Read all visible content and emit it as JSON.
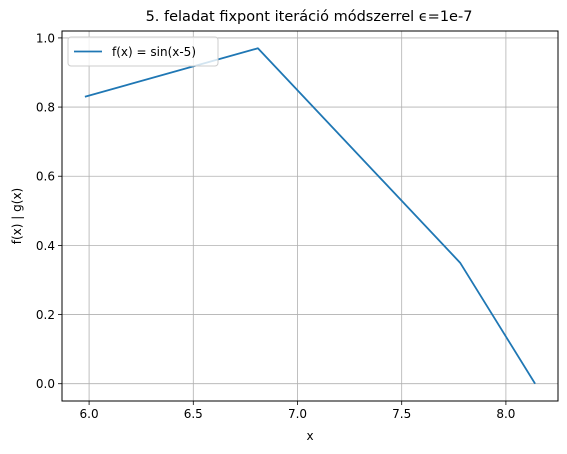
{
  "chart_data": {
    "type": "line",
    "title": "5. feladat fixpont iteráció módszerrel ϵ=1e-7",
    "xlabel": "x",
    "ylabel": "f(x) | g(x)",
    "xlim": [
      5.87,
      8.25
    ],
    "ylim": [
      -0.05,
      1.02
    ],
    "xticks": [
      "6.0",
      "6.5",
      "7.0",
      "7.5",
      "8.0"
    ],
    "yticks": [
      "0.0",
      "0.2",
      "0.4",
      "0.6",
      "0.8",
      "1.0"
    ],
    "grid": true,
    "legend_position": "top-left",
    "series": [
      {
        "name": "f(x) = sin(x-5)",
        "color": "#1f77b4",
        "x": [
          5.98,
          6.81,
          7.78,
          8.14
        ],
        "y": [
          0.83,
          0.97,
          0.35,
          0.0
        ]
      }
    ]
  }
}
